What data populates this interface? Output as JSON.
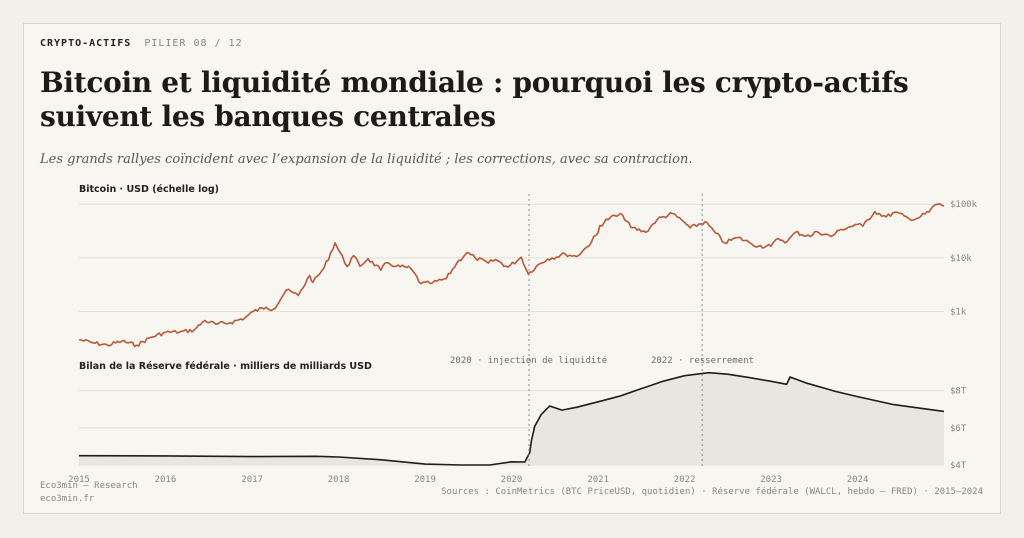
{
  "header": {
    "brand": "CRYPTO-ACTIFS",
    "pillar": "PILIER 08 / 12",
    "title": "Bitcoin et liquidité mondiale : pourquoi les crypto-actifs suivent les banques centrales",
    "subtitle": "Les grands rallyes coïncident avec l’expansion de la liquidité ; les corrections, avec sa contraction."
  },
  "footer": {
    "line1": "Eco3min — Research",
    "line2": "eco3min.fr",
    "sources": "Sources : CoinMetrics (BTC PriceUSD, quotidien) · Réserve fédérale (WALCL, hebdo — FRED) · 2015–2024"
  },
  "colors": {
    "btc": "#b8583a",
    "fed": "#1f1d1a",
    "fed_fill": "#e9e6e0",
    "grid": "#e3dfd7",
    "text_muted": "#8a8680"
  },
  "chart_data": [
    {
      "type": "line",
      "title": "Bitcoin · USD (échelle log)",
      "yscale": "log",
      "ylim": [
        200,
        110000
      ],
      "yticks": [
        {
          "value": 1000,
          "label": "$1k"
        },
        {
          "value": 10000,
          "label": "$10k"
        },
        {
          "value": 100000,
          "label": "$100k"
        }
      ],
      "series": [
        {
          "points": [
            [
              "2015-01-01",
              300
            ],
            [
              "2015-03-01",
              260
            ],
            [
              "2015-05-01",
              235
            ],
            [
              "2015-07-01",
              280
            ],
            [
              "2015-09-01",
              235
            ],
            [
              "2015-11-01",
              330
            ],
            [
              "2016-01-01",
              410
            ],
            [
              "2016-03-01",
              415
            ],
            [
              "2016-05-01",
              450
            ],
            [
              "2016-06-15",
              680
            ],
            [
              "2016-08-01",
              580
            ],
            [
              "2016-10-01",
              620
            ],
            [
              "2016-12-01",
              760
            ],
            [
              "2017-01-05",
              1000
            ],
            [
              "2017-03-01",
              1200
            ],
            [
              "2017-04-01",
              1100
            ],
            [
              "2017-05-25",
              2500
            ],
            [
              "2017-07-15",
              2000
            ],
            [
              "2017-09-01",
              4700
            ],
            [
              "2017-09-15",
              3500
            ],
            [
              "2017-11-01",
              6500
            ],
            [
              "2017-12-17",
              19000
            ],
            [
              "2018-02-06",
              6900
            ],
            [
              "2018-03-05",
              11000
            ],
            [
              "2018-04-01",
              7000
            ],
            [
              "2018-05-05",
              9700
            ],
            [
              "2018-06-28",
              5900
            ],
            [
              "2018-07-25",
              8200
            ],
            [
              "2018-09-01",
              7000
            ],
            [
              "2018-11-01",
              6400
            ],
            [
              "2018-12-15",
              3300
            ],
            [
              "2019-02-01",
              3400
            ],
            [
              "2019-04-01",
              4100
            ],
            [
              "2019-05-15",
              8000
            ],
            [
              "2019-06-26",
              12500
            ],
            [
              "2019-08-01",
              10000
            ],
            [
              "2019-09-25",
              8000
            ],
            [
              "2019-10-26",
              9300
            ],
            [
              "2019-12-17",
              6700
            ],
            [
              "2020-02-12",
              10300
            ],
            [
              "2020-03-12",
              5000
            ],
            [
              "2020-04-15",
              7000
            ],
            [
              "2020-06-01",
              9500
            ],
            [
              "2020-08-15",
              11800
            ],
            [
              "2020-10-01",
              10600
            ],
            [
              "2020-11-15",
              16000
            ],
            [
              "2020-12-31",
              29000
            ],
            [
              "2021-01-08",
              40000
            ],
            [
              "2021-02-21",
              57000
            ],
            [
              "2021-04-14",
              63000
            ],
            [
              "2021-05-19",
              37000
            ],
            [
              "2021-07-20",
              30000
            ],
            [
              "2021-09-07",
              52000
            ],
            [
              "2021-11-10",
              67000
            ],
            [
              "2021-12-31",
              46000
            ],
            [
              "2022-01-24",
              36000
            ],
            [
              "2022-03-28",
              47000
            ],
            [
              "2022-05-12",
              29000
            ],
            [
              "2022-06-18",
              19000
            ],
            [
              "2022-08-14",
              24000
            ],
            [
              "2022-10-01",
              19300
            ],
            [
              "2022-11-09",
              16500
            ],
            [
              "2022-12-31",
              16500
            ],
            [
              "2023-01-31",
              23000
            ],
            [
              "2023-03-10",
              20000
            ],
            [
              "2023-04-14",
              30000
            ],
            [
              "2023-06-15",
              25000
            ],
            [
              "2023-07-14",
              31000
            ],
            [
              "2023-09-11",
              25000
            ],
            [
              "2023-10-24",
              34000
            ],
            [
              "2023-12-31",
              42000
            ],
            [
              "2024-01-23",
              39000
            ],
            [
              "2024-03-14",
              73000
            ],
            [
              "2024-05-01",
              58000
            ],
            [
              "2024-06-07",
              71000
            ],
            [
              "2024-08-05",
              54000
            ],
            [
              "2024-09-06",
              54000
            ],
            [
              "2024-10-29",
              72000
            ],
            [
              "2024-11-13",
              90000
            ],
            [
              "2024-12-05",
              100000
            ],
            [
              "2024-12-31",
              93000
            ]
          ]
        }
      ]
    },
    {
      "type": "area",
      "title": "Bilan de la Réserve fédérale · milliers de milliards USD",
      "ylim": [
        4,
        9
      ],
      "yticks": [
        {
          "value": 4,
          "label": "$4T"
        },
        {
          "value": 6,
          "label": "$6T"
        },
        {
          "value": 8,
          "label": "$8T"
        }
      ],
      "xticks": [
        "2015",
        "2016",
        "2017",
        "2018",
        "2019",
        "2020",
        "2021",
        "2022",
        "2023",
        "2024"
      ],
      "series": [
        {
          "points": [
            [
              "2015-01-01",
              4.5
            ],
            [
              "2016-01-01",
              4.49
            ],
            [
              "2017-01-01",
              4.45
            ],
            [
              "2017-10-01",
              4.47
            ],
            [
              "2018-01-01",
              4.43
            ],
            [
              "2018-07-01",
              4.28
            ],
            [
              "2019-01-01",
              4.05
            ],
            [
              "2019-06-01",
              3.9
            ],
            [
              "2019-09-01",
              3.76
            ],
            [
              "2019-10-01",
              3.95
            ],
            [
              "2020-01-01",
              4.17
            ],
            [
              "2020-02-26",
              4.16
            ],
            [
              "2020-03-18",
              4.66
            ],
            [
              "2020-03-25",
              5.3
            ],
            [
              "2020-04-08",
              6.08
            ],
            [
              "2020-05-06",
              6.72
            ],
            [
              "2020-06-10",
              7.17
            ],
            [
              "2020-08-01",
              6.95
            ],
            [
              "2020-10-01",
              7.1
            ],
            [
              "2021-01-01",
              7.4
            ],
            [
              "2021-04-01",
              7.7
            ],
            [
              "2021-07-01",
              8.1
            ],
            [
              "2021-10-01",
              8.5
            ],
            [
              "2022-01-01",
              8.8
            ],
            [
              "2022-04-13",
              8.96
            ],
            [
              "2022-07-01",
              8.88
            ],
            [
              "2022-10-01",
              8.7
            ],
            [
              "2023-01-01",
              8.5
            ],
            [
              "2023-03-08",
              8.34
            ],
            [
              "2023-03-22",
              8.73
            ],
            [
              "2023-06-01",
              8.4
            ],
            [
              "2023-10-01",
              7.95
            ],
            [
              "2024-01-01",
              7.68
            ],
            [
              "2024-06-01",
              7.25
            ],
            [
              "2024-12-31",
              6.88
            ]
          ]
        }
      ]
    }
  ],
  "annotations": [
    {
      "date": "2020-03-15",
      "label": "2020 · injection de liquidité"
    },
    {
      "date": "2022-03-16",
      "label": "2022 · resserrement"
    }
  ]
}
